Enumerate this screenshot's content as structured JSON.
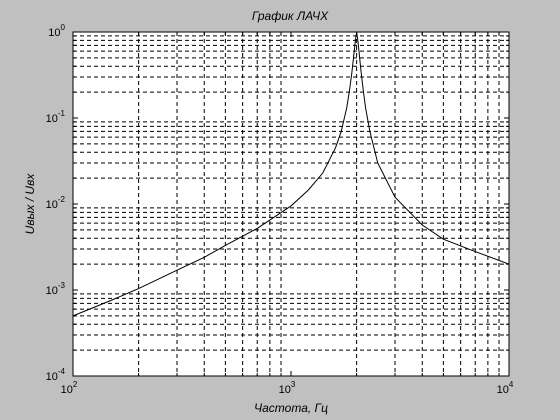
{
  "chart_data": {
    "type": "line",
    "title": "График ЛАЧХ",
    "xlabel": "Частота, Гц",
    "ylabel": "Uвых / Uвх",
    "xscale": "log",
    "yscale": "log",
    "xlim": [
      100,
      10000
    ],
    "ylim": [
      0.0001,
      1
    ],
    "grid": "on (major and minor, dashed)",
    "x_ticks": [
      {
        "base": "10",
        "exp": "2"
      },
      {
        "base": "10",
        "exp": "3"
      },
      {
        "base": "10",
        "exp": "4"
      }
    ],
    "y_ticks": [
      {
        "base": "10",
        "exp": "-4"
      },
      {
        "base": "10",
        "exp": "-3"
      },
      {
        "base": "10",
        "exp": "-2"
      },
      {
        "base": "10",
        "exp": "-1"
      },
      {
        "base": "10",
        "exp": "0"
      }
    ],
    "series": [
      {
        "color": "#000000",
        "x": [
          100,
          150,
          200,
          300,
          400,
          500,
          700,
          1000,
          1200,
          1400,
          1600,
          1700,
          1800,
          1850,
          1900,
          1950,
          1980,
          2000,
          2020,
          2050,
          2100,
          2150,
          2200,
          2300,
          2500,
          3000,
          4000,
          5000,
          7000,
          10000
        ],
        "y": [
          0.0005,
          0.00076,
          0.00104,
          0.0017,
          0.0024,
          0.0033,
          0.0052,
          0.0095,
          0.0145,
          0.023,
          0.045,
          0.07,
          0.13,
          0.2,
          0.33,
          0.6,
          0.85,
          0.98,
          0.85,
          0.6,
          0.33,
          0.2,
          0.13,
          0.07,
          0.03,
          0.012,
          0.0057,
          0.0039,
          0.0028,
          0.002
        ]
      }
    ]
  },
  "colors": {
    "background": "#c0c0c0",
    "plot_area": "#ffffff",
    "grid": "#000000",
    "line": "#000000"
  }
}
